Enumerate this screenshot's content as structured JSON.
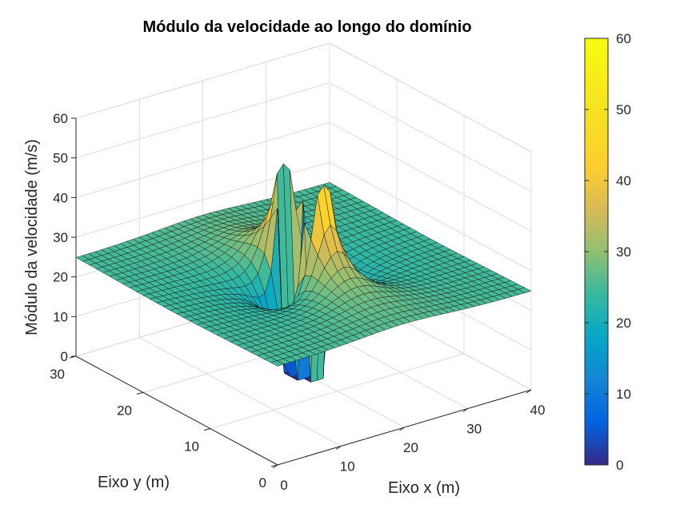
{
  "chart_data": {
    "type": "surface",
    "title": "Módulo da velocidade ao longo do domínio",
    "xlabel": "Eixo x (m)",
    "ylabel": "Eixo y (m)",
    "zlabel": "Módulo da velocidade (m/s)",
    "xlim": [
      0,
      40
    ],
    "ylim": [
      0,
      30
    ],
    "zlim": [
      0,
      60
    ],
    "xticks": [
      "0",
      "10",
      "20",
      "30",
      "40"
    ],
    "yticks": [
      "0",
      "10",
      "20",
      "30"
    ],
    "zticks": [
      "0",
      "10",
      "20",
      "30",
      "40",
      "50",
      "60"
    ],
    "grid": true,
    "colormap": "parula",
    "colorbar": {
      "limits": [
        0,
        60
      ],
      "ticks": [
        "0",
        "10",
        "20",
        "30",
        "40",
        "50",
        "60"
      ]
    },
    "free_stream_speed": 25,
    "obstacle": {
      "x": 20,
      "y": 15
    },
    "peak_speed": 50,
    "min_speed": 0
  }
}
